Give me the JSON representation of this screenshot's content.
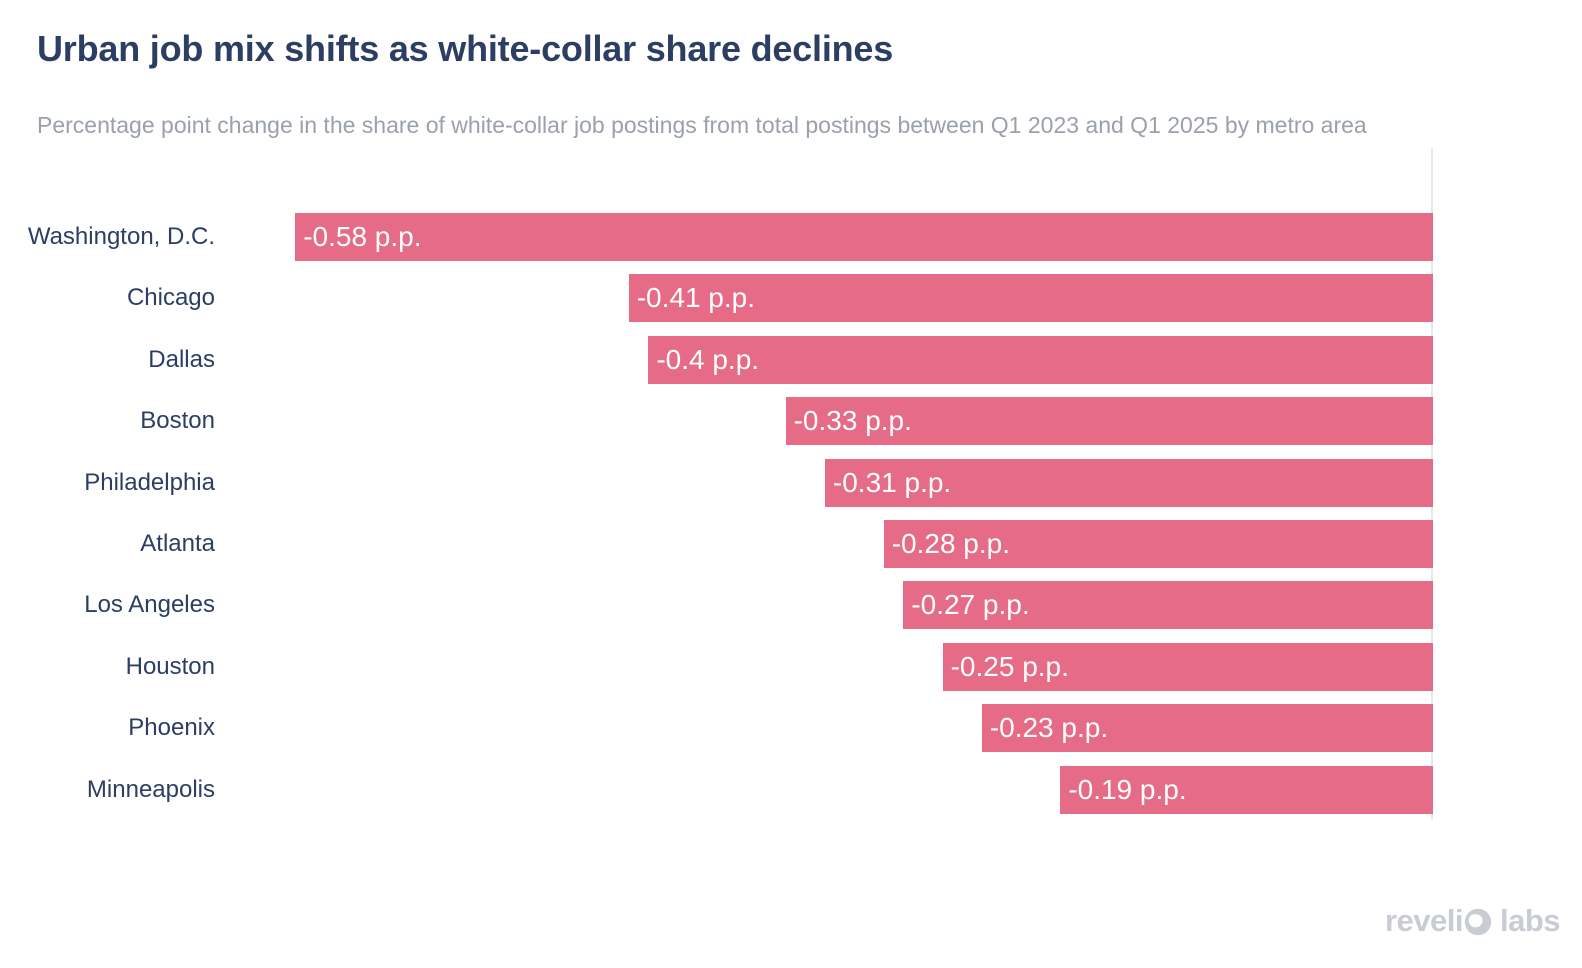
{
  "header": {
    "title": "Urban job mix shifts as white-collar share declines",
    "subtitle": "Percentage point change in the share of white-collar job postings from total postings between Q1 2023 and Q1 2025 by metro area"
  },
  "chart_data": {
    "type": "bar",
    "orientation": "horizontal",
    "title": "Urban job mix shifts as white-collar share declines",
    "subtitle": "Percentage point change in the share of white-collar job postings from total postings between Q1 2023 and Q1 2025 by metro area",
    "categories": [
      "Washington, D.C.",
      "Chicago",
      "Dallas",
      "Boston",
      "Philadelphia",
      "Atlanta",
      "Los Angeles",
      "Houston",
      "Phoenix",
      "Minneapolis"
    ],
    "values": [
      -0.58,
      -0.41,
      -0.4,
      -0.33,
      -0.31,
      -0.28,
      -0.27,
      -0.25,
      -0.23,
      -0.19
    ],
    "value_labels": [
      "-0.58 p.p.",
      "-0.41 p.p.",
      "-0.4 p.p.",
      "-0.33 p.p.",
      "-0.31 p.p.",
      "-0.28 p.p.",
      "-0.27 p.p.",
      "-0.25 p.p.",
      "-0.23 p.p.",
      "-0.19 p.p."
    ],
    "unit": "p.p.",
    "xlim": [
      -0.6,
      0
    ],
    "grid": false,
    "legend": "none",
    "zero_line_at_right": true,
    "colors": {
      "bar": "#e66b86",
      "category_label": "#2c3e63",
      "value_label": "#ffffff",
      "title": "#2c3e63",
      "subtitle": "#9aa1ab",
      "axis_line": "#e5e6ec"
    }
  },
  "footer": {
    "brand": "revelio labs",
    "logo_left": "reveli",
    "logo_right": "labs"
  }
}
